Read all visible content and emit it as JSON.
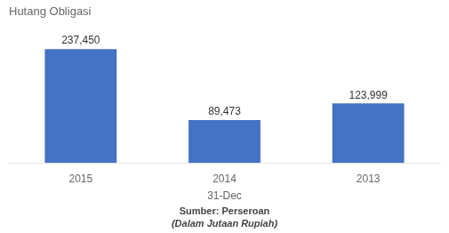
{
  "chart_data": {
    "type": "bar",
    "title": "Hutang Obligasi",
    "categories": [
      "2015",
      "2014",
      "2013"
    ],
    "values": [
      237450,
      89473,
      123999
    ],
    "value_labels": [
      "237,450",
      "89,473",
      "123,999"
    ],
    "data_labels": true,
    "color": "#4472C4",
    "xlabel": "31-Dec",
    "ylim": [
      0,
      270000
    ],
    "tick_labels": "x",
    "grid": false,
    "annotations": [
      "Sumber: Perseroan",
      "(Dalam Jutaan Rupiah)"
    ]
  }
}
